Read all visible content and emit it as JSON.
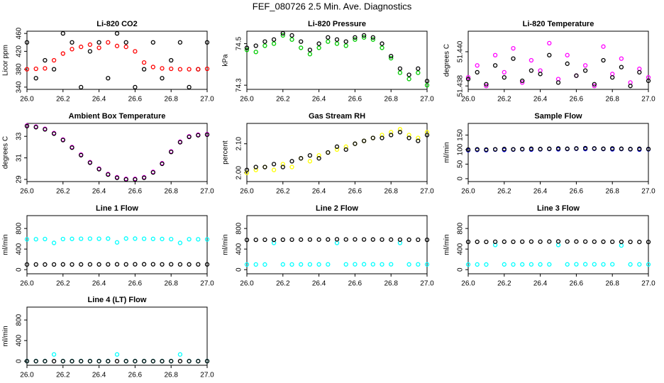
{
  "title": "FEF_080726  2.5 Min. Ave. Diagnostics",
  "chart_data": [
    {
      "type": "scatter",
      "title": "Li-820 CO2",
      "ylabel": "Licor ppm",
      "xlim": [
        26.0,
        27.0
      ],
      "xticks": [
        {
          "value": 26,
          "label": "26.0"
        },
        26.2,
        26.4,
        26.6,
        26.8,
        {
          "value": 27,
          "label": "27.0"
        }
      ],
      "ylim": [
        335,
        465
      ],
      "yticks": [
        340,
        380,
        420,
        460
      ],
      "x": [
        26.0,
        26.05,
        26.1,
        26.15,
        26.2,
        26.25,
        26.3,
        26.35,
        26.4,
        26.45,
        26.5,
        26.55,
        26.6,
        26.65,
        26.7,
        26.75,
        26.8,
        26.85,
        26.9,
        26.95,
        27.0
      ],
      "series": [
        {
          "color": "#000000",
          "values": [
            440,
            360,
            400,
            380,
            460,
            440,
            340,
            420,
            440,
            360,
            460,
            440,
            340,
            380,
            440,
            360,
            400,
            440,
            340,
            380,
            440
          ]
        },
        {
          "color": "#ff0000",
          "values": [
            380,
            381,
            382,
            400,
            415,
            425,
            430,
            435,
            428,
            440,
            432,
            430,
            420,
            395,
            385,
            382,
            381,
            380,
            380,
            380,
            381
          ]
        }
      ]
    },
    {
      "type": "scatter",
      "title": "Li-820 Pressure",
      "ylabel": "kPa",
      "xlim": [
        26.0,
        27.0
      ],
      "xticks": [
        {
          "value": 26,
          "label": "26.0"
        },
        26.2,
        26.4,
        26.6,
        26.8,
        {
          "value": 27,
          "label": "27.0"
        }
      ],
      "ylim": [
        74.28,
        74.56
      ],
      "yticks": [
        74.3,
        74.5
      ],
      "x": [
        26.0,
        26.05,
        26.1,
        26.15,
        26.2,
        26.25,
        26.3,
        26.35,
        26.4,
        26.45,
        26.5,
        26.55,
        26.6,
        26.65,
        26.7,
        26.75,
        26.8,
        26.85,
        26.9,
        26.95,
        27.0
      ],
      "series": [
        {
          "color": "#00cc00",
          "values": [
            74.47,
            74.46,
            74.49,
            74.5,
            74.54,
            74.52,
            74.48,
            74.45,
            74.48,
            74.51,
            74.5,
            74.49,
            74.52,
            74.53,
            74.52,
            74.48,
            74.43,
            74.36,
            74.33,
            74.36,
            74.3
          ]
        },
        {
          "color": "#000000",
          "values": [
            74.48,
            74.49,
            74.51,
            74.52,
            74.55,
            74.54,
            74.51,
            74.47,
            74.5,
            74.53,
            74.52,
            74.51,
            74.53,
            74.54,
            74.53,
            74.5,
            74.44,
            74.38,
            74.35,
            74.38,
            74.32
          ]
        }
      ]
    },
    {
      "type": "scatter",
      "title": "Li-820 Temperature",
      "ylabel": "degrees C",
      "xlim": [
        26.0,
        27.0
      ],
      "xticks": [
        {
          "value": 26,
          "label": "26.0"
        },
        26.2,
        26.4,
        26.6,
        26.8,
        {
          "value": 27,
          "label": "27.0"
        }
      ],
      "ylim": [
        51.4378,
        51.4412
      ],
      "yticks": [
        51.438,
        {
          "value": 51.44,
          "label": "51.440"
        }
      ],
      "x": [
        26.0,
        26.05,
        26.1,
        26.15,
        26.2,
        26.25,
        26.3,
        26.35,
        26.4,
        26.45,
        26.5,
        26.55,
        26.6,
        26.65,
        26.7,
        26.75,
        26.8,
        26.85,
        26.9,
        26.95,
        27.0
      ],
      "series": [
        {
          "color": "#ff00ff",
          "values": [
            51.4385,
            51.4392,
            51.438,
            51.4398,
            51.4388,
            51.4402,
            51.4382,
            51.4395,
            51.4389,
            51.4405,
            51.4384,
            51.4398,
            51.4386,
            51.4392,
            51.438,
            51.4403,
            51.4387,
            51.4396,
            51.4382,
            51.439,
            51.4385
          ]
        },
        {
          "color": "#000000",
          "values": [
            51.4384,
            51.4388,
            51.4381,
            51.4392,
            51.4385,
            51.4396,
            51.4383,
            51.4389,
            51.4387,
            51.4398,
            51.4382,
            51.4393,
            51.4386,
            51.4389,
            51.4381,
            51.4395,
            51.4385,
            51.4391,
            51.438,
            51.4388,
            51.4383
          ]
        }
      ]
    },
    {
      "type": "scatter",
      "title": "Ambient Box Temperature",
      "ylabel": "degrees C",
      "xlim": [
        26.0,
        27.0
      ],
      "xticks": [
        {
          "value": 26,
          "label": "26.0"
        },
        26.2,
        26.4,
        26.6,
        26.8,
        {
          "value": 27,
          "label": "27.0"
        }
      ],
      "ylim": [
        28.8,
        34.2
      ],
      "yticks": [
        29,
        31,
        33
      ],
      "x": [
        26.0,
        26.05,
        26.1,
        26.15,
        26.2,
        26.25,
        26.3,
        26.35,
        26.4,
        26.45,
        26.5,
        26.55,
        26.6,
        26.65,
        26.7,
        26.75,
        26.8,
        26.85,
        26.9,
        26.95,
        27.0
      ],
      "series": [
        {
          "color": "#ff00ff",
          "values": [
            34.0,
            33.9,
            33.7,
            33.3,
            32.7,
            32.0,
            31.3,
            30.6,
            30.0,
            29.5,
            29.2,
            29.05,
            29.05,
            29.2,
            29.7,
            30.5,
            31.6,
            32.5,
            33.0,
            33.15,
            33.2
          ]
        },
        {
          "color": "#000000",
          "values": [
            33.95,
            33.85,
            33.65,
            33.25,
            32.65,
            31.95,
            31.25,
            30.55,
            29.95,
            29.45,
            29.15,
            29.0,
            29.0,
            29.15,
            29.65,
            30.45,
            31.55,
            32.45,
            32.95,
            33.1,
            33.15
          ]
        }
      ]
    },
    {
      "type": "scatter",
      "title": "Gas Stream RH",
      "ylabel": "percent",
      "xlim": [
        26.0,
        27.0
      ],
      "xticks": [
        {
          "value": 26,
          "label": "26.0"
        },
        26.2,
        26.4,
        26.6,
        26.8,
        {
          "value": 27,
          "label": "27.0"
        }
      ],
      "ylim": [
        1.97,
        2.17
      ],
      "yticks": [
        {
          "value": 2,
          "label": "2.00"
        },
        {
          "value": 2.1,
          "label": "2.10"
        }
      ],
      "x": [
        26.0,
        26.05,
        26.1,
        26.15,
        26.2,
        26.25,
        26.3,
        26.35,
        26.4,
        26.45,
        26.5,
        26.55,
        26.6,
        26.65,
        26.7,
        26.75,
        26.8,
        26.85,
        26.9,
        26.95,
        27.0
      ],
      "series": [
        {
          "color": "#ffff00",
          "values": [
            2.0,
            2.01,
            2.02,
            2.01,
            2.03,
            2.02,
            2.05,
            2.04,
            2.06,
            2.07,
            2.08,
            2.09,
            2.1,
            2.11,
            2.12,
            2.13,
            2.14,
            2.15,
            2.13,
            2.12,
            2.14
          ]
        },
        {
          "color": "#000000",
          "values": [
            2.01,
            2.02,
            2.02,
            2.03,
            2.02,
            2.04,
            2.05,
            2.06,
            2.05,
            2.07,
            2.09,
            2.08,
            2.1,
            2.11,
            2.12,
            2.12,
            2.13,
            2.14,
            2.12,
            2.11,
            2.13
          ]
        }
      ]
    },
    {
      "type": "scatter",
      "title": "Sample Flow",
      "ylabel": "ml/min",
      "xlim": [
        26.0,
        27.0
      ],
      "xticks": [
        {
          "value": 26,
          "label": "26.0"
        },
        26.2,
        26.4,
        26.6,
        26.8,
        {
          "value": 27,
          "label": "27.0"
        }
      ],
      "ylim": [
        -10,
        190
      ],
      "yticks": [
        0,
        50,
        100,
        150
      ],
      "x": [
        26.0,
        26.05,
        26.1,
        26.15,
        26.2,
        26.25,
        26.3,
        26.35,
        26.4,
        26.45,
        26.5,
        26.55,
        26.6,
        26.65,
        26.7,
        26.75,
        26.8,
        26.85,
        26.9,
        26.95,
        27.0
      ],
      "series": [
        {
          "color": "#0000cc",
          "values": [
            98,
            99,
            98,
            100,
            99,
            100,
            101,
            100,
            101,
            102,
            101,
            102,
            103,
            102,
            103,
            102,
            101,
            102,
            101,
            100,
            101
          ]
        },
        {
          "color": "#000000",
          "values": [
            100,
            101,
            100,
            101,
            102,
            101,
            102,
            103,
            102,
            103,
            104,
            103,
            104,
            105,
            104,
            103,
            104,
            103,
            102,
            103,
            102
          ]
        }
      ]
    },
    {
      "type": "scatter",
      "title": "Line 1 Flow",
      "ylabel": "ml/min",
      "xlim": [
        26.0,
        27.0
      ],
      "xticks": [
        {
          "value": 26,
          "label": "26.0"
        },
        26.2,
        26.4,
        26.6,
        26.8,
        {
          "value": 27,
          "label": "27.0"
        }
      ],
      "ylim": [
        -80,
        1050
      ],
      "yticks": [
        0,
        400,
        800
      ],
      "x": [
        26.0,
        26.05,
        26.1,
        26.15,
        26.2,
        26.25,
        26.3,
        26.35,
        26.4,
        26.45,
        26.5,
        26.55,
        26.6,
        26.65,
        26.7,
        26.75,
        26.8,
        26.85,
        26.9,
        26.95,
        27.0
      ],
      "series": [
        {
          "color": "#00ffff",
          "values": [
            590,
            592,
            595,
            520,
            595,
            598,
            600,
            602,
            600,
            603,
            530,
            605,
            603,
            600,
            598,
            596,
            594,
            520,
            592,
            590,
            588
          ]
        },
        {
          "color": "#000000",
          "values": [
            100,
            101,
            100,
            101,
            102,
            101,
            102,
            103,
            102,
            103,
            104,
            103,
            104,
            105,
            104,
            103,
            104,
            103,
            102,
            103,
            102
          ]
        }
      ]
    },
    {
      "type": "scatter",
      "title": "Line 2 Flow",
      "ylabel": "ml/min",
      "xlim": [
        26.0,
        27.0
      ],
      "xticks": [
        {
          "value": 26,
          "label": "26.0"
        },
        26.2,
        26.4,
        26.6,
        26.8,
        {
          "value": 27,
          "label": "27.0"
        }
      ],
      "ylim": [
        -80,
        1050
      ],
      "yticks": [
        0,
        400,
        800
      ],
      "x": [
        26.0,
        26.05,
        26.1,
        26.15,
        26.2,
        26.25,
        26.3,
        26.35,
        26.4,
        26.45,
        26.5,
        26.55,
        26.6,
        26.65,
        26.7,
        26.75,
        26.8,
        26.85,
        26.9,
        26.95,
        27.0
      ],
      "series": [
        {
          "color": "#00ffff",
          "values": [
            100,
            101,
            100,
            520,
            102,
            101,
            102,
            103,
            102,
            103,
            520,
            103,
            104,
            105,
            104,
            103,
            104,
            520,
            102,
            103,
            102
          ]
        },
        {
          "color": "#000000",
          "values": [
            578,
            580,
            581,
            580,
            582,
            583,
            584,
            585,
            584,
            586,
            590,
            587,
            588,
            587,
            586,
            585,
            584,
            583,
            582,
            581,
            580
          ]
        }
      ]
    },
    {
      "type": "scatter",
      "title": "Line 3 Flow",
      "ylabel": "ml/min",
      "xlim": [
        26.0,
        27.0
      ],
      "xticks": [
        {
          "value": 26,
          "label": "26.0"
        },
        26.2,
        26.4,
        26.6,
        26.8,
        {
          "value": 27,
          "label": "27.0"
        }
      ],
      "ylim": [
        -80,
        1050
      ],
      "yticks": [
        0,
        400,
        800
      ],
      "x": [
        26.0,
        26.05,
        26.1,
        26.15,
        26.2,
        26.25,
        26.3,
        26.35,
        26.4,
        26.45,
        26.5,
        26.55,
        26.6,
        26.65,
        26.7,
        26.75,
        26.8,
        26.85,
        26.9,
        26.95,
        27.0
      ],
      "series": [
        {
          "color": "#00ffff",
          "values": [
            100,
            101,
            100,
            480,
            102,
            101,
            102,
            103,
            102,
            103,
            480,
            103,
            104,
            105,
            104,
            103,
            104,
            470,
            102,
            103,
            102
          ]
        },
        {
          "color": "#000000",
          "values": [
            540,
            541,
            540,
            542,
            543,
            542,
            544,
            545,
            544,
            546,
            548,
            547,
            546,
            545,
            544,
            543,
            542,
            541,
            540,
            539,
            538
          ]
        }
      ]
    },
    {
      "type": "scatter",
      "title": "Line 4 (LT) Flow",
      "ylabel": "ml/min",
      "xlim": [
        26.0,
        27.0
      ],
      "xticks": [
        {
          "value": 26,
          "label": "26.0"
        },
        26.2,
        26.4,
        26.6,
        26.8,
        {
          "value": 27,
          "label": "27.0"
        }
      ],
      "ylim": [
        -80,
        1050
      ],
      "yticks": [
        0,
        400,
        800
      ],
      "x": [
        26.0,
        26.05,
        26.1,
        26.15,
        26.2,
        26.25,
        26.3,
        26.35,
        26.4,
        26.45,
        26.5,
        26.55,
        26.6,
        26.65,
        26.7,
        26.75,
        26.8,
        26.85,
        26.9,
        26.95,
        27.0
      ],
      "series": [
        {
          "color": "#00ffff",
          "values": [
            2,
            2,
            2,
            130,
            2,
            2,
            2,
            2,
            2,
            2,
            130,
            2,
            2,
            2,
            2,
            2,
            2,
            130,
            2,
            2,
            2
          ]
        },
        {
          "color": "#000000",
          "values": [
            0,
            0,
            0,
            0,
            0,
            0,
            0,
            0,
            0,
            0,
            0,
            0,
            0,
            0,
            0,
            0,
            0,
            0,
            0,
            0,
            0
          ]
        }
      ]
    }
  ]
}
